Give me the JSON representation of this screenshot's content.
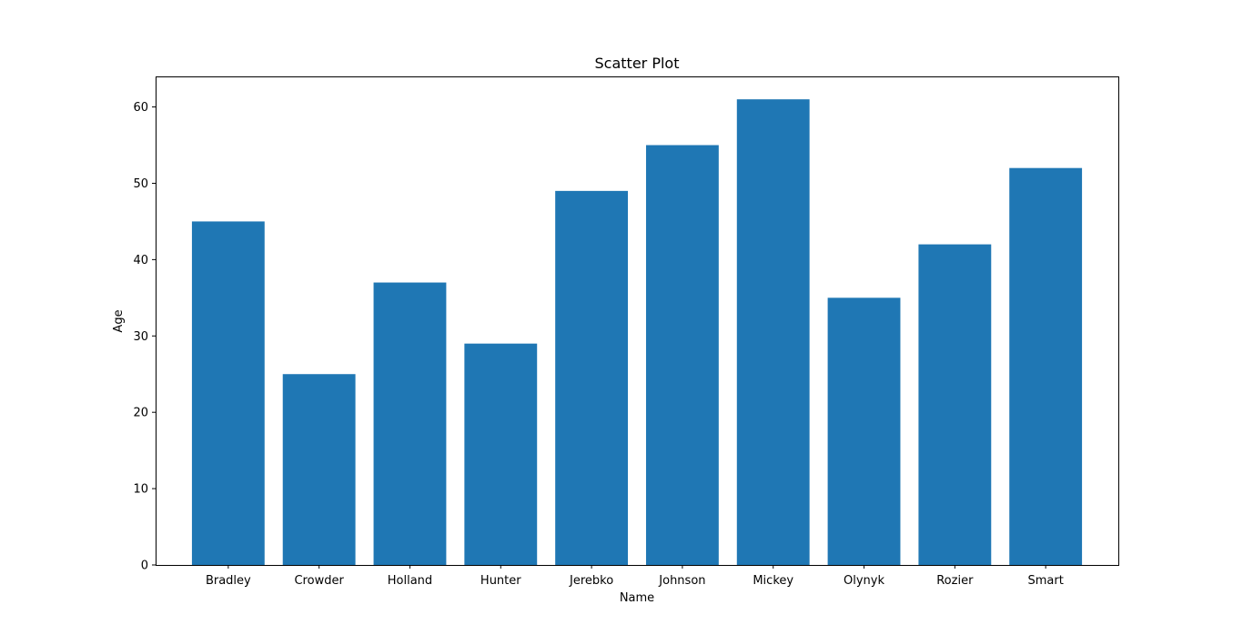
{
  "chart_data": {
    "type": "bar",
    "title": "Scatter Plot",
    "xlabel": "Name",
    "ylabel": "Age",
    "categories": [
      "Bradley",
      "Crowder",
      "Holland",
      "Hunter",
      "Jerebko",
      "Johnson",
      "Mickey",
      "Olynyk",
      "Rozier",
      "Smart"
    ],
    "values": [
      45,
      25,
      37,
      29,
      49,
      55,
      61,
      35,
      42,
      52
    ],
    "ylim": [
      0,
      64
    ],
    "yticks": [
      0,
      10,
      20,
      30,
      40,
      50,
      60
    ],
    "bar_color": "#1f77b4",
    "grid": false,
    "legend": false
  }
}
